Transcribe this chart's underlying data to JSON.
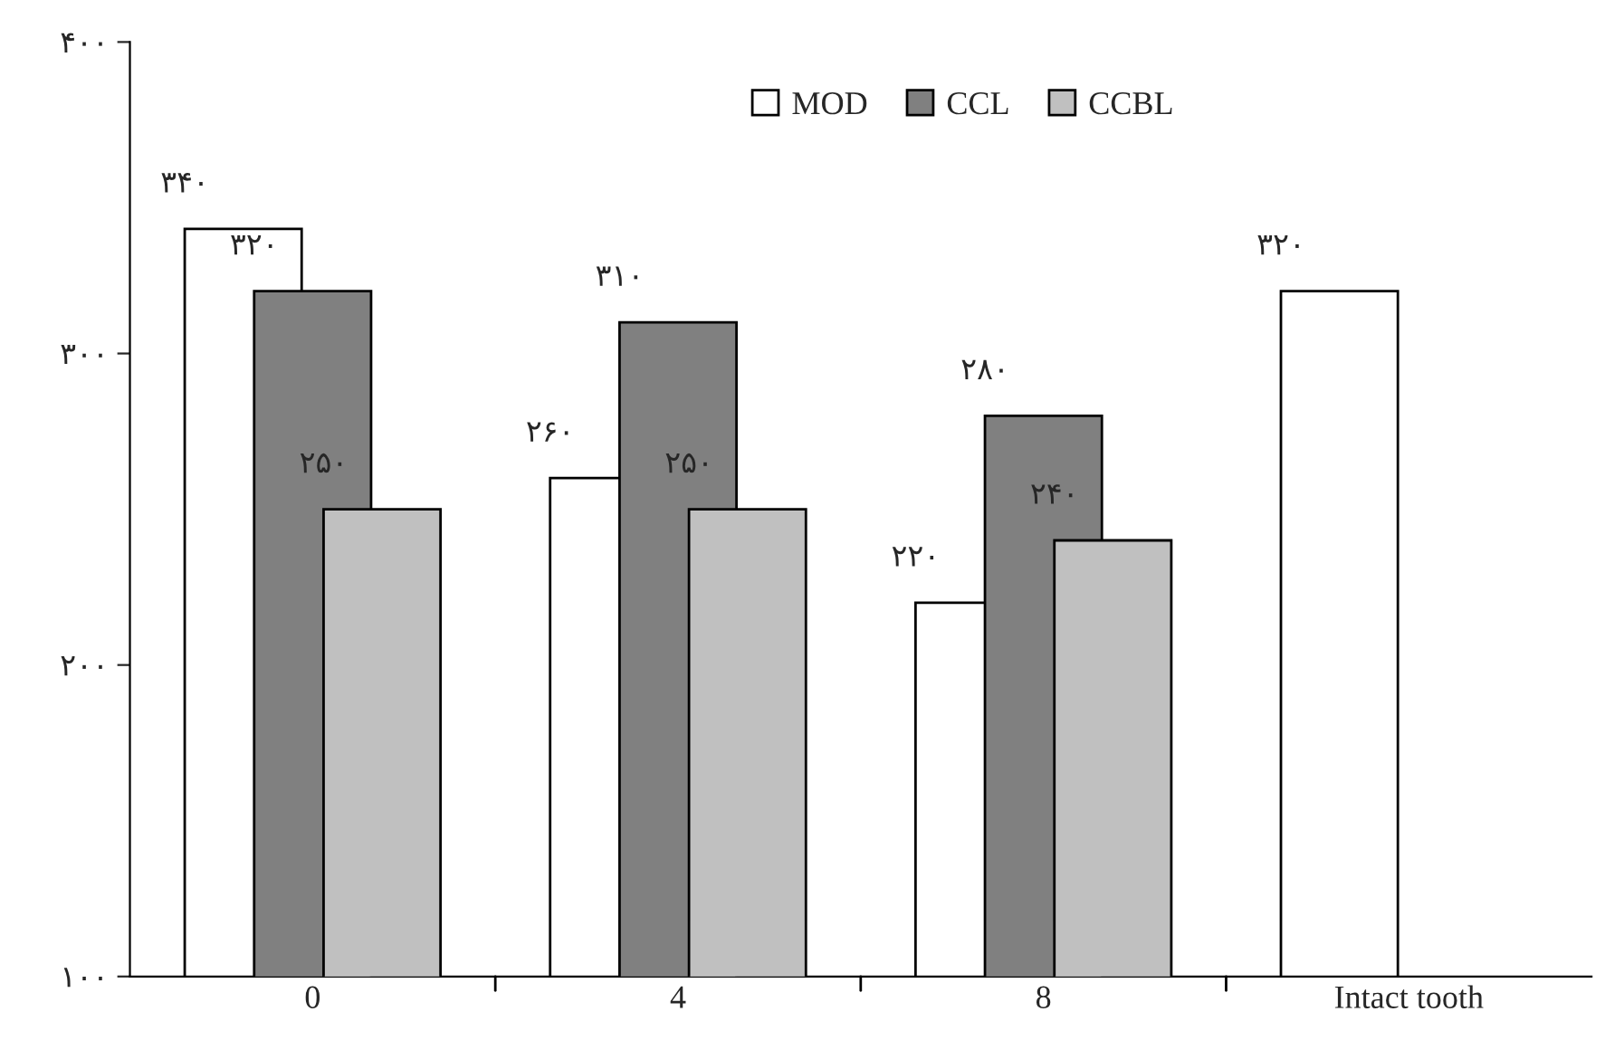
{
  "chart_data": {
    "type": "bar",
    "categories": [
      "0",
      "4",
      "8",
      "Intact tooth"
    ],
    "series": [
      {
        "name": "MOD",
        "color": "#ffffff",
        "values": [
          340,
          260,
          220,
          320
        ],
        "value_labels": [
          "۳۴۰",
          "۲۶۰",
          "۲۲۰",
          "۳۲۰"
        ]
      },
      {
        "name": "CCL",
        "color": "#808080",
        "values": [
          320,
          310,
          280,
          null
        ],
        "value_labels": [
          "۳۲۰",
          "۳۱۰",
          "۲۸۰",
          null
        ]
      },
      {
        "name": "CCBL",
        "color": "#c0c0c0",
        "values": [
          250,
          250,
          240,
          null
        ],
        "value_labels": [
          "۲۵۰",
          "۲۵۰",
          "۲۴۰",
          null
        ]
      }
    ],
    "ylim": [
      100,
      400
    ],
    "yticks": [
      {
        "value": 100,
        "label": "۱۰۰"
      },
      {
        "value": 200,
        "label": "۲۰۰"
      },
      {
        "value": 300,
        "label": "۳۰۰"
      },
      {
        "value": 400,
        "label": "۴۰۰"
      }
    ],
    "legend": "top",
    "grid": false
  }
}
